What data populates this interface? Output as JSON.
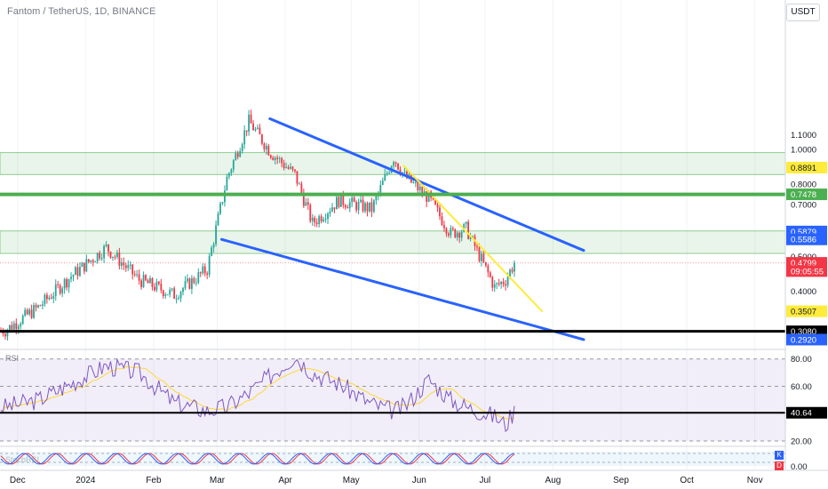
{
  "header": {
    "symbol": "Fantom / TetherUS, 1D, BINANCE",
    "currency": "USDT"
  },
  "price_axis": {
    "ticks": [
      {
        "label": "1.1000",
        "v": 1.1
      },
      {
        "label": "1.0000",
        "v": 1.0
      },
      {
        "label": "0.8000",
        "v": 0.8
      },
      {
        "label": "0.7000",
        "v": 0.7
      },
      {
        "label": "0.5000",
        "v": 0.5
      },
      {
        "label": "0.4000",
        "v": 0.4
      }
    ],
    "badges": [
      {
        "label": "0.8891",
        "v": 0.8891,
        "bg": "#ffeb3b",
        "fg": "#131722"
      },
      {
        "label": "0.7478",
        "v": 0.7478,
        "bg": "#4caf50",
        "fg": "#ffffff"
      },
      {
        "label": "0.5879",
        "v": 0.5879,
        "bg": "#2962ff",
        "fg": "#ffffff"
      },
      {
        "label": "0.5586",
        "v": 0.5586,
        "bg": "#2962ff",
        "fg": "#ffffff"
      },
      {
        "label": "0.4799",
        "v": 0.4799,
        "bg": "#f23645",
        "fg": "#ffffff"
      },
      {
        "label": "09:05:55",
        "v": 0.455,
        "bg": "#f23645",
        "fg": "#ffffff"
      },
      {
        "label": "0.3507",
        "v": 0.3507,
        "bg": "#ffeb3b",
        "fg": "#131722"
      },
      {
        "label": "0.3080",
        "v": 0.308,
        "bg": "#000000",
        "fg": "#ffffff"
      },
      {
        "label": "0.2920",
        "v": 0.292,
        "bg": "#2962ff",
        "fg": "#ffffff"
      }
    ]
  },
  "time_axis": [
    "Dec",
    "2024",
    "Feb",
    "Mar",
    "Apr",
    "May",
    "Jun",
    "Jul",
    "Aug",
    "Sep",
    "Oct",
    "Nov"
  ],
  "rsi": {
    "label": "RSI",
    "ticks": [
      "80.00",
      "60.00",
      "20.00"
    ],
    "badge": "40.64",
    "level": 40.64
  },
  "stoch": {
    "label": "StochRSI",
    "tick": "0.00",
    "k": "K",
    "d": "D"
  },
  "chart_data": {
    "type": "candlestick",
    "symbol": "Fantom / TetherUS",
    "interval": "1D",
    "exchange": "BINANCE",
    "currency": "USDT",
    "x": [
      "2023-11-25",
      "2023-12-10",
      "2023-12-25",
      "2024-01-10",
      "2024-01-25",
      "2024-02-10",
      "2024-02-25",
      "2024-03-05",
      "2024-03-15",
      "2024-03-25",
      "2024-04-05",
      "2024-04-13",
      "2024-04-25",
      "2024-05-10",
      "2024-05-20",
      "2024-05-25",
      "2024-06-05",
      "2024-06-15",
      "2024-06-22",
      "2024-07-05",
      "2024-07-10",
      "2024-07-14"
    ],
    "close": [
      0.31,
      0.36,
      0.44,
      0.53,
      0.43,
      0.39,
      0.46,
      0.83,
      1.2,
      0.98,
      0.85,
      0.62,
      0.72,
      0.68,
      0.95,
      0.84,
      0.73,
      0.58,
      0.6,
      0.41,
      0.43,
      0.4799
    ],
    "levels": [
      {
        "name": "zone-top",
        "from": 0.85,
        "to": 0.98
      },
      {
        "name": "zone-mid",
        "from": 0.51,
        "to": 0.59
      },
      {
        "name": "support",
        "v": 0.7478
      },
      {
        "name": "base",
        "v": 0.308
      }
    ],
    "rsi": [
      45,
      50,
      62,
      75,
      70,
      48,
      42,
      45,
      55,
      68,
      82,
      70,
      62,
      47,
      42,
      45,
      65,
      50,
      45,
      38,
      32,
      42
    ],
    "rsi_ylim": [
      20,
      85
    ],
    "colors": {
      "up": "#26a69a",
      "down": "#f23645",
      "trend": "#2962ff",
      "wedge": "#ffeb3b",
      "zone": "#4caf50",
      "rsi": "#7e57c2",
      "rsi_ma": "#fdd835"
    }
  }
}
